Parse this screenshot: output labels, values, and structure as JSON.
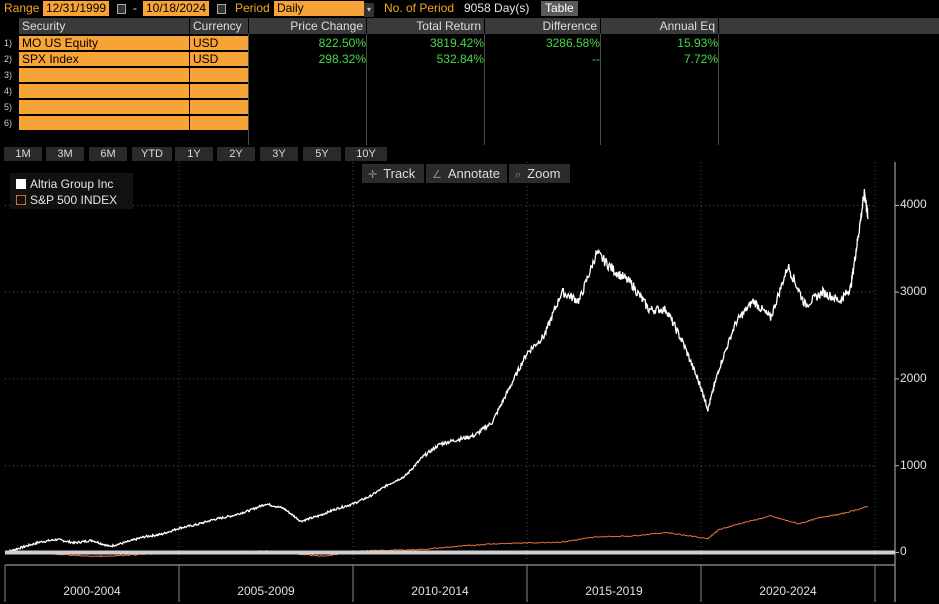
{
  "topbar": {
    "range_label": "Range",
    "start_date": "12/31/1999",
    "dash": "-",
    "end_date": "10/18/2024",
    "period_label": "Period",
    "period_value": "Daily",
    "num_periods_label": "No. of Period",
    "num_periods_value": "9058 Day(s)",
    "table_button": "Table"
  },
  "table": {
    "headers": [
      "Security",
      "Currency",
      "Price Change",
      "Total Return",
      "Difference",
      "Annual Eq"
    ],
    "rows": [
      {
        "num": "1)",
        "security": "MO US Equity",
        "currency": "USD",
        "price_change": "822.50%",
        "total_return": "3819.42%",
        "difference": "3286.58%",
        "annual_eq": "15.93%"
      },
      {
        "num": "2)",
        "security": "SPX Index",
        "currency": "USD",
        "price_change": "298.32%",
        "total_return": "532.84%",
        "difference": "--",
        "annual_eq": "7.72%"
      },
      {
        "num": "3)",
        "security": "",
        "currency": ""
      },
      {
        "num": "4)",
        "security": "",
        "currency": ""
      },
      {
        "num": "5)",
        "security": "",
        "currency": ""
      },
      {
        "num": "6)",
        "security": "",
        "currency": ""
      }
    ]
  },
  "period_buttons": [
    "1M",
    "3M",
    "6M",
    "YTD",
    "1Y",
    "2Y",
    "3Y",
    "5Y",
    "10Y"
  ],
  "chart_tools": {
    "track": "Track",
    "annotate": "Annotate",
    "zoom": "Zoom"
  },
  "colors": {
    "accent_orange": "#f7a336",
    "positive_green": "#48d848",
    "series_mo": "#ffffff",
    "series_spx": "#e8733a"
  },
  "chart_data": {
    "type": "line",
    "series": [
      {
        "name": "Altria Group Inc",
        "x": [
          2000.0,
          2000.5,
          2001.0,
          2001.5,
          2002.0,
          2002.5,
          2003.0,
          2003.5,
          2004.0,
          2004.5,
          2005.0,
          2005.5,
          2006.0,
          2006.5,
          2007.0,
          2007.5,
          2008.0,
          2008.5,
          2009.0,
          2009.5,
          2010.0,
          2010.5,
          2011.0,
          2011.5,
          2012.0,
          2012.5,
          2013.0,
          2013.5,
          2014.0,
          2014.5,
          2015.0,
          2015.5,
          2016.0,
          2016.5,
          2017.0,
          2017.5,
          2018.0,
          2018.5,
          2019.0,
          2019.5,
          2020.0,
          2020.2,
          2020.5,
          2021.0,
          2021.5,
          2022.0,
          2022.5,
          2023.0,
          2023.5,
          2024.0,
          2024.3,
          2024.5,
          2024.7,
          2024.8
        ],
        "y": [
          0,
          60,
          120,
          150,
          110,
          140,
          70,
          120,
          180,
          210,
          280,
          320,
          380,
          420,
          480,
          560,
          510,
          360,
          420,
          500,
          560,
          650,
          780,
          880,
          1100,
          1250,
          1300,
          1350,
          1500,
          1900,
          2300,
          2500,
          3000,
          2900,
          3450,
          3250,
          3100,
          2800,
          2800,
          2400,
          1900,
          1650,
          2100,
          2650,
          2900,
          2700,
          3300,
          2850,
          3000,
          2900,
          3050,
          3600,
          4150,
          3850
        ]
      },
      {
        "name": "S&P 500 INDEX",
        "x": [
          2000.0,
          2000.7,
          2001.5,
          2002.5,
          2003.0,
          2004.0,
          2005.0,
          2006.0,
          2007.5,
          2008.5,
          2009.2,
          2010.0,
          2011.0,
          2012.0,
          2013.0,
          2014.0,
          2015.0,
          2016.0,
          2017.0,
          2018.0,
          2019.0,
          2020.2,
          2020.5,
          2021.0,
          2022.0,
          2022.8,
          2023.5,
          2024.0,
          2024.8
        ],
        "y": [
          0,
          5,
          -20,
          -45,
          -40,
          -20,
          -10,
          0,
          20,
          -20,
          -45,
          15,
          25,
          35,
          70,
          100,
          110,
          120,
          180,
          190,
          230,
          160,
          260,
          320,
          420,
          330,
          410,
          440,
          530
        ]
      }
    ],
    "xlim": [
      2000.0,
      2025.0
    ],
    "ylim": [
      -110,
      4500
    ],
    "y_ticks": [
      0,
      1000,
      2000,
      3000,
      4000
    ],
    "x_period_labels": [
      "2000-2004",
      "2005-2009",
      "2010-2014",
      "2015-2019",
      "2020-2024"
    ],
    "legend": "top-left"
  }
}
